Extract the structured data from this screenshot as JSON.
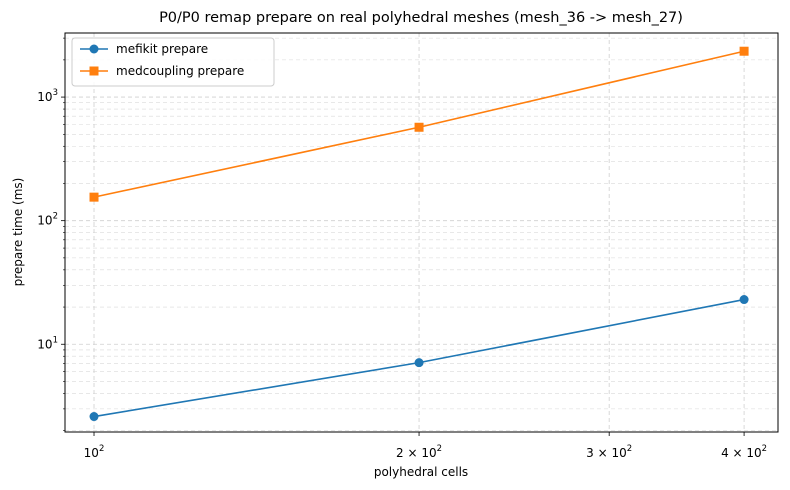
{
  "chart_data": {
    "type": "line",
    "title": "P0/P0 remap prepare on real polyhedral meshes (mesh_36 -> mesh_27)",
    "xlabel": "polyhedral cells",
    "ylabel": "prepare time (ms)",
    "xscale": "log",
    "yscale": "log",
    "x": [
      100,
      200,
      400
    ],
    "xlim": [
      94,
      430
    ],
    "ylim": [
      1.95,
      3300
    ],
    "x_ticks": [
      {
        "value": 100,
        "base": "10",
        "exp": "2"
      },
      {
        "value": 200,
        "base": "2 × 10",
        "exp": "2"
      },
      {
        "value": 300,
        "base": "3 × 10",
        "exp": "2"
      },
      {
        "value": 400,
        "base": "4 × 10",
        "exp": "2"
      }
    ],
    "y_ticks": [
      {
        "value": 10,
        "base": "10",
        "exp": "1"
      },
      {
        "value": 100,
        "base": "10",
        "exp": "2"
      },
      {
        "value": 1000,
        "base": "10",
        "exp": "3"
      }
    ],
    "grid": true,
    "legend_position": "top-left",
    "series": [
      {
        "name": "mefikit prepare",
        "values": [
          2.6,
          7.1,
          23
        ],
        "color": "#1f77b4",
        "marker": "circle"
      },
      {
        "name": "medcoupling prepare",
        "values": [
          155,
          570,
          2350
        ],
        "color": "#ff7f0e",
        "marker": "square"
      }
    ]
  }
}
